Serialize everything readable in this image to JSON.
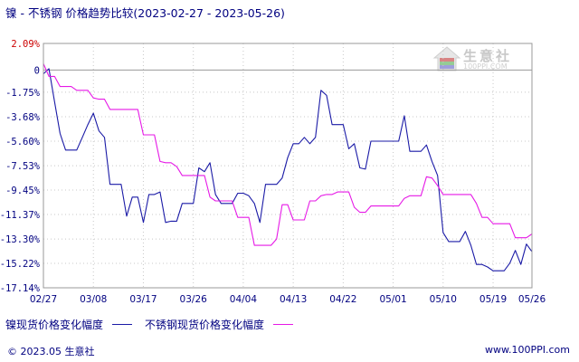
{
  "title": "镍 - 不锈钢 价格趋势比较(2023-02-27 - 2023-05-26)",
  "logo": {
    "name": "生意社",
    "url": "100PPI.COM"
  },
  "footer": {
    "left": "© 2023.05 生意社",
    "right": "www.100PPI.com"
  },
  "colors": {
    "nickel": "#1a1aa6",
    "stainless": "#e619e6",
    "axis_text": "#000080",
    "top_tick": "#cc0000",
    "grid": "#c8c8c8"
  },
  "chart_data": {
    "type": "line",
    "title": "镍 - 不锈钢 价格趋势比较(2023-02-27 - 2023-05-26)",
    "xlabel": "",
    "ylabel": "",
    "ylim": [
      -17.14,
      2.09
    ],
    "y_ticks": [
      2.09,
      0,
      -1.75,
      -3.68,
      -5.6,
      -7.53,
      -9.45,
      -11.37,
      -13.3,
      -15.22,
      -17.14
    ],
    "y_tick_labels": [
      "2.09%",
      "0",
      "-1.75%",
      "-3.68%",
      "-5.60%",
      "-7.53%",
      "-9.45%",
      "-11.37%",
      "-13.30%",
      "-15.22%",
      "-17.14%"
    ],
    "x_ticks": [
      "02/27",
      "03/08",
      "03/17",
      "03/26",
      "04/04",
      "04/13",
      "04/22",
      "05/01",
      "05/10",
      "05/19",
      "05/26"
    ],
    "x_tick_days": [
      0,
      9,
      18,
      27,
      36,
      45,
      54,
      63,
      72,
      81,
      88
    ],
    "x_max_day": 88,
    "grid": true,
    "legend_position": "bottom-left",
    "series": [
      {
        "name": "镍现货价格变化幅度",
        "color": "#1a1aa6",
        "points": [
          [
            0,
            -0.3
          ],
          [
            1,
            0.1
          ],
          [
            2,
            -2.5
          ],
          [
            3,
            -5.0
          ],
          [
            4,
            -6.3
          ],
          [
            5,
            -6.3
          ],
          [
            6,
            -6.3
          ],
          [
            7,
            -5.3
          ],
          [
            8,
            -4.3
          ],
          [
            9,
            -3.4
          ],
          [
            10,
            -4.8
          ],
          [
            11,
            -5.3
          ],
          [
            12,
            -9.0
          ],
          [
            13,
            -9.0
          ],
          [
            14,
            -9.0
          ],
          [
            15,
            -11.5
          ],
          [
            16,
            -10.0
          ],
          [
            17,
            -10.0
          ],
          [
            18,
            -12.0
          ],
          [
            19,
            -9.8
          ],
          [
            20,
            -9.8
          ],
          [
            21,
            -9.6
          ],
          [
            22,
            -12.0
          ],
          [
            23,
            -11.9
          ],
          [
            24,
            -11.9
          ],
          [
            25,
            -10.5
          ],
          [
            26,
            -10.5
          ],
          [
            27,
            -10.5
          ],
          [
            28,
            -7.7
          ],
          [
            29,
            -8.0
          ],
          [
            30,
            -7.3
          ],
          [
            31,
            -9.8
          ],
          [
            32,
            -10.5
          ],
          [
            33,
            -10.5
          ],
          [
            34,
            -10.5
          ],
          [
            35,
            -9.7
          ],
          [
            36,
            -9.7
          ],
          [
            37,
            -9.9
          ],
          [
            38,
            -10.5
          ],
          [
            39,
            -12.0
          ],
          [
            40,
            -9.0
          ],
          [
            41,
            -9.0
          ],
          [
            42,
            -9.0
          ],
          [
            43,
            -8.5
          ],
          [
            44,
            -6.9
          ],
          [
            45,
            -5.8
          ],
          [
            46,
            -5.8
          ],
          [
            47,
            -5.3
          ],
          [
            48,
            -5.8
          ],
          [
            49,
            -5.3
          ],
          [
            50,
            -1.6
          ],
          [
            51,
            -2.0
          ],
          [
            52,
            -4.3
          ],
          [
            53,
            -4.3
          ],
          [
            54,
            -4.3
          ],
          [
            55,
            -6.2
          ],
          [
            56,
            -5.8
          ],
          [
            57,
            -7.7
          ],
          [
            58,
            -7.8
          ],
          [
            59,
            -5.6
          ],
          [
            60,
            -5.6
          ],
          [
            61,
            -5.6
          ],
          [
            62,
            -5.6
          ],
          [
            63,
            -5.6
          ],
          [
            64,
            -5.6
          ],
          [
            65,
            -3.6
          ],
          [
            66,
            -6.4
          ],
          [
            67,
            -6.4
          ],
          [
            68,
            -6.4
          ],
          [
            69,
            -5.9
          ],
          [
            70,
            -7.2
          ],
          [
            71,
            -8.3
          ],
          [
            72,
            -12.8
          ],
          [
            73,
            -13.5
          ],
          [
            74,
            -13.5
          ],
          [
            75,
            -13.5
          ],
          [
            76,
            -12.7
          ],
          [
            77,
            -13.8
          ],
          [
            78,
            -15.3
          ],
          [
            79,
            -15.3
          ],
          [
            80,
            -15.5
          ],
          [
            81,
            -15.8
          ],
          [
            82,
            -15.8
          ],
          [
            83,
            -15.8
          ],
          [
            84,
            -15.2
          ],
          [
            85,
            -14.2
          ],
          [
            86,
            -15.3
          ],
          [
            87,
            -13.7
          ],
          [
            88,
            -14.3
          ]
        ]
      },
      {
        "name": "不锈钢现货价格变化幅度",
        "color": "#e619e6",
        "points": [
          [
            0,
            0.5
          ],
          [
            1,
            -0.5
          ],
          [
            2,
            -0.5
          ],
          [
            3,
            -1.3
          ],
          [
            4,
            -1.3
          ],
          [
            5,
            -1.3
          ],
          [
            6,
            -1.6
          ],
          [
            7,
            -1.6
          ],
          [
            8,
            -1.6
          ],
          [
            9,
            -2.2
          ],
          [
            10,
            -2.3
          ],
          [
            11,
            -2.3
          ],
          [
            12,
            -3.1
          ],
          [
            13,
            -3.1
          ],
          [
            14,
            -3.1
          ],
          [
            15,
            -3.1
          ],
          [
            16,
            -3.1
          ],
          [
            17,
            -3.1
          ],
          [
            18,
            -5.1
          ],
          [
            19,
            -5.1
          ],
          [
            20,
            -5.1
          ],
          [
            21,
            -7.2
          ],
          [
            22,
            -7.3
          ],
          [
            23,
            -7.3
          ],
          [
            24,
            -7.6
          ],
          [
            25,
            -8.3
          ],
          [
            26,
            -8.3
          ],
          [
            27,
            -8.3
          ],
          [
            28,
            -8.3
          ],
          [
            29,
            -8.3
          ],
          [
            30,
            -10.0
          ],
          [
            31,
            -10.3
          ],
          [
            32,
            -10.3
          ],
          [
            33,
            -10.3
          ],
          [
            34,
            -10.3
          ],
          [
            35,
            -11.6
          ],
          [
            36,
            -11.6
          ],
          [
            37,
            -11.6
          ],
          [
            38,
            -13.8
          ],
          [
            39,
            -13.8
          ],
          [
            40,
            -13.8
          ],
          [
            41,
            -13.8
          ],
          [
            42,
            -13.3
          ],
          [
            43,
            -10.6
          ],
          [
            44,
            -10.6
          ],
          [
            45,
            -11.8
          ],
          [
            46,
            -11.8
          ],
          [
            47,
            -11.8
          ],
          [
            48,
            -10.3
          ],
          [
            49,
            -10.3
          ],
          [
            50,
            -9.9
          ],
          [
            51,
            -9.8
          ],
          [
            52,
            -9.8
          ],
          [
            53,
            -9.6
          ],
          [
            54,
            -9.6
          ],
          [
            55,
            -9.6
          ],
          [
            56,
            -10.8
          ],
          [
            57,
            -11.2
          ],
          [
            58,
            -11.2
          ],
          [
            59,
            -10.7
          ],
          [
            60,
            -10.7
          ],
          [
            61,
            -10.7
          ],
          [
            62,
            -10.7
          ],
          [
            63,
            -10.7
          ],
          [
            64,
            -10.7
          ],
          [
            65,
            -10.1
          ],
          [
            66,
            -9.9
          ],
          [
            67,
            -9.9
          ],
          [
            68,
            -9.9
          ],
          [
            69,
            -8.4
          ],
          [
            70,
            -8.5
          ],
          [
            71,
            -9.1
          ],
          [
            72,
            -9.8
          ],
          [
            73,
            -9.8
          ],
          [
            74,
            -9.8
          ],
          [
            75,
            -9.8
          ],
          [
            76,
            -9.8
          ],
          [
            77,
            -9.8
          ],
          [
            78,
            -10.5
          ],
          [
            79,
            -11.6
          ],
          [
            80,
            -11.6
          ],
          [
            81,
            -12.1
          ],
          [
            82,
            -12.1
          ],
          [
            83,
            -12.1
          ],
          [
            84,
            -12.1
          ],
          [
            85,
            -13.2
          ],
          [
            86,
            -13.2
          ],
          [
            87,
            -13.2
          ],
          [
            88,
            -12.9
          ]
        ]
      }
    ]
  }
}
